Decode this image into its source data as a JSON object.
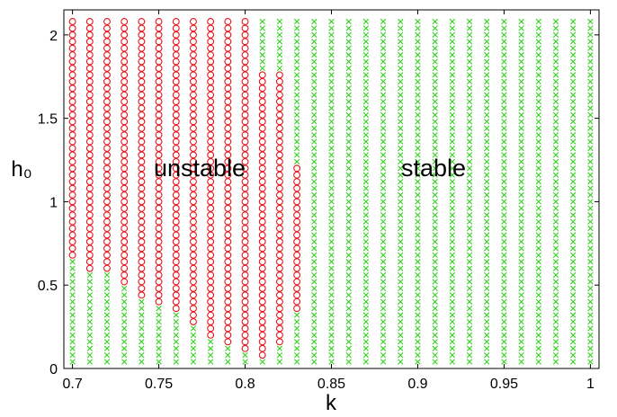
{
  "chart_data": {
    "type": "scatter",
    "xlabel": "k",
    "ylabel": "h₀",
    "xlim": [
      0.695,
      1.005
    ],
    "ylim": [
      0,
      2.15
    ],
    "x_ticks": [
      "0.7",
      "0.75",
      "0.8",
      "0.85",
      "0.9",
      "0.95",
      "1"
    ],
    "y_ticks": [
      "0",
      "0.5",
      "1",
      "1.5",
      "2"
    ],
    "annotations": [
      {
        "text": "unstable",
        "x": 0.745,
        "y": 1.21
      },
      {
        "text": "stable",
        "x": 0.901,
        "y": 1.21
      }
    ],
    "grid": {
      "k_start": 0.7,
      "k_step": 0.01,
      "k_count": 31,
      "h_start": 0.04,
      "h_step": 0.04,
      "h_count": 52
    },
    "series": [
      {
        "marker": "o",
        "color": "#e8141c",
        "region": "unstable: points with h above the boundary, for k up to 0.83",
        "boundary_k": [
          0.7,
          0.71,
          0.72,
          0.73,
          0.74,
          0.75,
          0.76,
          0.77,
          0.78,
          0.79,
          0.8,
          0.81,
          0.82,
          0.83
        ],
        "boundary_h": [
          0.67,
          0.6,
          0.57,
          0.5,
          0.44,
          0.39,
          0.33,
          0.25,
          0.19,
          0.13,
          0.09,
          0.05,
          0.16,
          0.36
        ],
        "h_max_by_k": [
          2.08,
          2.08,
          2.08,
          2.08,
          2.08,
          2.08,
          2.08,
          2.08,
          2.08,
          2.08,
          2.08,
          1.76,
          1.76,
          1.2
        ]
      },
      {
        "marker": "x",
        "color": "#33d11f",
        "region": "stable: all remaining grid points"
      }
    ]
  }
}
